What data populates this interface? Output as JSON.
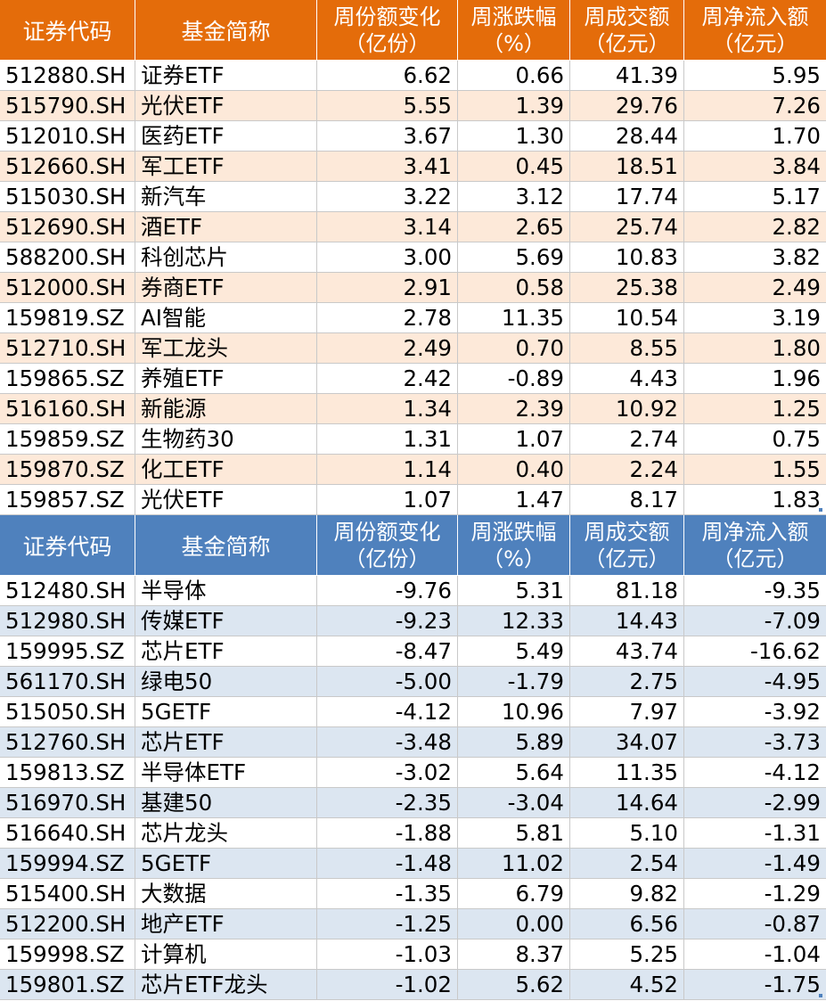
{
  "top": {
    "headers": [
      {
        "l1": "证券代码"
      },
      {
        "l1": "基金简称"
      },
      {
        "l1": "周份额变化",
        "l2": "（亿份）"
      },
      {
        "l1": "周涨跌幅",
        "l2": "（%）"
      },
      {
        "l1": "周成交额",
        "l2": "（亿元）"
      },
      {
        "l1": "周净流入额",
        "l2": "（亿元）"
      }
    ],
    "rows": [
      [
        "512880.SH",
        "证券ETF",
        "6.62",
        "0.66",
        "41.39",
        "5.95"
      ],
      [
        "515790.SH",
        "光伏ETF",
        "5.55",
        "1.39",
        "29.76",
        "7.26"
      ],
      [
        "512010.SH",
        "医药ETF",
        "3.67",
        "1.30",
        "28.44",
        "1.70"
      ],
      [
        "512660.SH",
        "军工ETF",
        "3.41",
        "0.45",
        "18.51",
        "3.84"
      ],
      [
        "515030.SH",
        "新汽车",
        "3.22",
        "3.12",
        "17.74",
        "5.17"
      ],
      [
        "512690.SH",
        "酒ETF",
        "3.14",
        "2.65",
        "25.74",
        "2.82"
      ],
      [
        "588200.SH",
        "科创芯片",
        "3.00",
        "5.69",
        "10.83",
        "3.82"
      ],
      [
        "512000.SH",
        "券商ETF",
        "2.91",
        "0.58",
        "25.38",
        "2.49"
      ],
      [
        "159819.SZ",
        "AI智能",
        "2.78",
        "11.35",
        "10.54",
        "3.19"
      ],
      [
        "512710.SH",
        "军工龙头",
        "2.49",
        "0.70",
        "8.55",
        "1.80"
      ],
      [
        "159865.SZ",
        "养殖ETF",
        "2.42",
        "-0.89",
        "4.43",
        "1.96"
      ],
      [
        "516160.SH",
        "新能源",
        "1.34",
        "2.39",
        "10.92",
        "1.25"
      ],
      [
        "159859.SZ",
        "生物药30",
        "1.31",
        "1.07",
        "2.74",
        "0.75"
      ],
      [
        "159870.SZ",
        "化工ETF",
        "1.14",
        "0.40",
        "2.24",
        "1.55"
      ],
      [
        "159857.SZ",
        "光伏ETF",
        "1.07",
        "1.47",
        "8.17",
        "1.83"
      ]
    ]
  },
  "bottom": {
    "headers": [
      {
        "l1": "证券代码"
      },
      {
        "l1": "基金简称"
      },
      {
        "l1": "周份额变化",
        "l2": "（亿份）"
      },
      {
        "l1": "周涨跌幅",
        "l2": "（%）"
      },
      {
        "l1": "周成交额",
        "l2": "（亿元）"
      },
      {
        "l1": "周净流入额",
        "l2": "（亿元）"
      }
    ],
    "rows": [
      [
        "512480.SH",
        "半导体",
        "-9.76",
        "5.31",
        "81.18",
        "-9.35"
      ],
      [
        "512980.SH",
        "传媒ETF",
        "-9.23",
        "12.33",
        "14.43",
        "-7.09"
      ],
      [
        "159995.SZ",
        "芯片ETF",
        "-8.47",
        "5.49",
        "43.74",
        "-16.62"
      ],
      [
        "561170.SH",
        "绿电50",
        "-5.00",
        "-1.79",
        "2.75",
        "-4.95"
      ],
      [
        "515050.SH",
        "5GETF",
        "-4.12",
        "10.96",
        "7.97",
        "-3.92"
      ],
      [
        "512760.SH",
        "芯片ETF",
        "-3.48",
        "5.89",
        "34.07",
        "-3.73"
      ],
      [
        "159813.SZ",
        "半导体ETF",
        "-3.02",
        "5.64",
        "11.35",
        "-4.12"
      ],
      [
        "516970.SH",
        "基建50",
        "-2.35",
        "-3.04",
        "14.64",
        "-2.99"
      ],
      [
        "516640.SH",
        "芯片龙头",
        "-1.88",
        "5.81",
        "5.10",
        "-1.31"
      ],
      [
        "159994.SZ",
        "5GETF",
        "-1.48",
        "11.02",
        "2.54",
        "-1.49"
      ],
      [
        "515400.SH",
        "大数据",
        "-1.35",
        "6.79",
        "9.82",
        "-1.29"
      ],
      [
        "512200.SH",
        "地产ETF",
        "-1.25",
        "0.00",
        "6.56",
        "-0.87"
      ],
      [
        "159998.SZ",
        "计算机",
        "-1.03",
        "8.37",
        "5.25",
        "-1.04"
      ],
      [
        "159801.SZ",
        "芯片ETF龙头",
        "-1.02",
        "5.62",
        "4.52",
        "-1.75"
      ]
    ]
  },
  "colors": {
    "top_header": "#e46c0a",
    "top_shade": "#fde9d9",
    "bottom_header": "#4f81bd",
    "bottom_shade": "#dce6f1"
  }
}
